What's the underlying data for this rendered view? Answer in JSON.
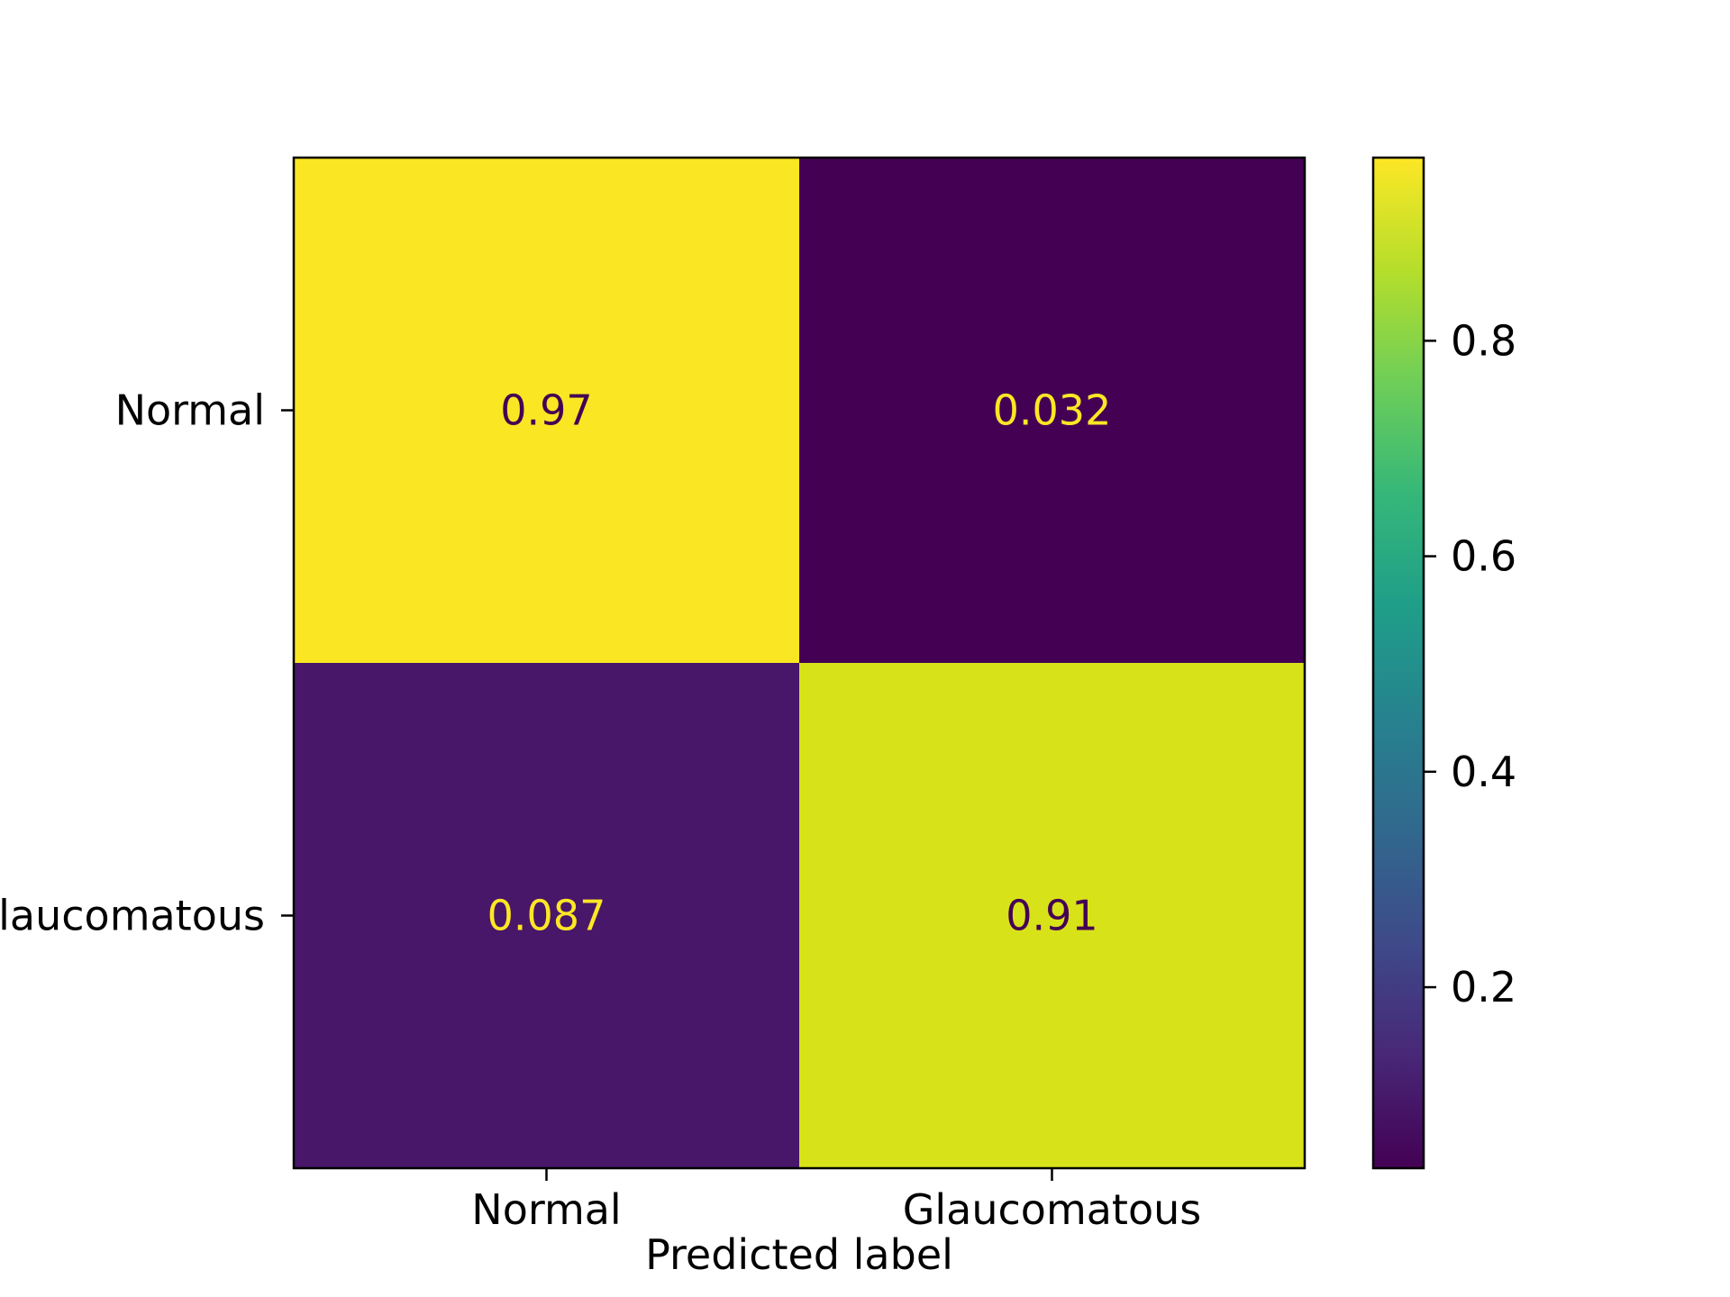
{
  "chart_data": {
    "type": "heatmap",
    "title": "",
    "xlabel": "Predicted label",
    "ylabel": "",
    "x_categories": [
      "Normal",
      "Glaucomatous"
    ],
    "y_categories": [
      "Normal",
      "Glaucomatous"
    ],
    "values": [
      [
        0.97,
        0.032
      ],
      [
        0.087,
        0.91
      ]
    ],
    "value_labels": [
      [
        "0.97",
        "0.032"
      ],
      [
        "0.087",
        "0.91"
      ]
    ],
    "colormap": "viridis",
    "colorbar": {
      "range": [
        0.032,
        0.97
      ],
      "ticks": [
        0.2,
        0.4,
        0.6,
        0.8
      ],
      "tick_labels": [
        "0.2",
        "0.4",
        "0.6",
        "0.8"
      ]
    },
    "colors": {
      "high": "#fde725",
      "low": "#440154",
      "cell_colors": [
        [
          "#fae622",
          "#440154"
        ],
        [
          "#481769",
          "#d8e219"
        ]
      ],
      "text_on_dark": "#fde725",
      "text_on_light": "#440154"
    }
  }
}
